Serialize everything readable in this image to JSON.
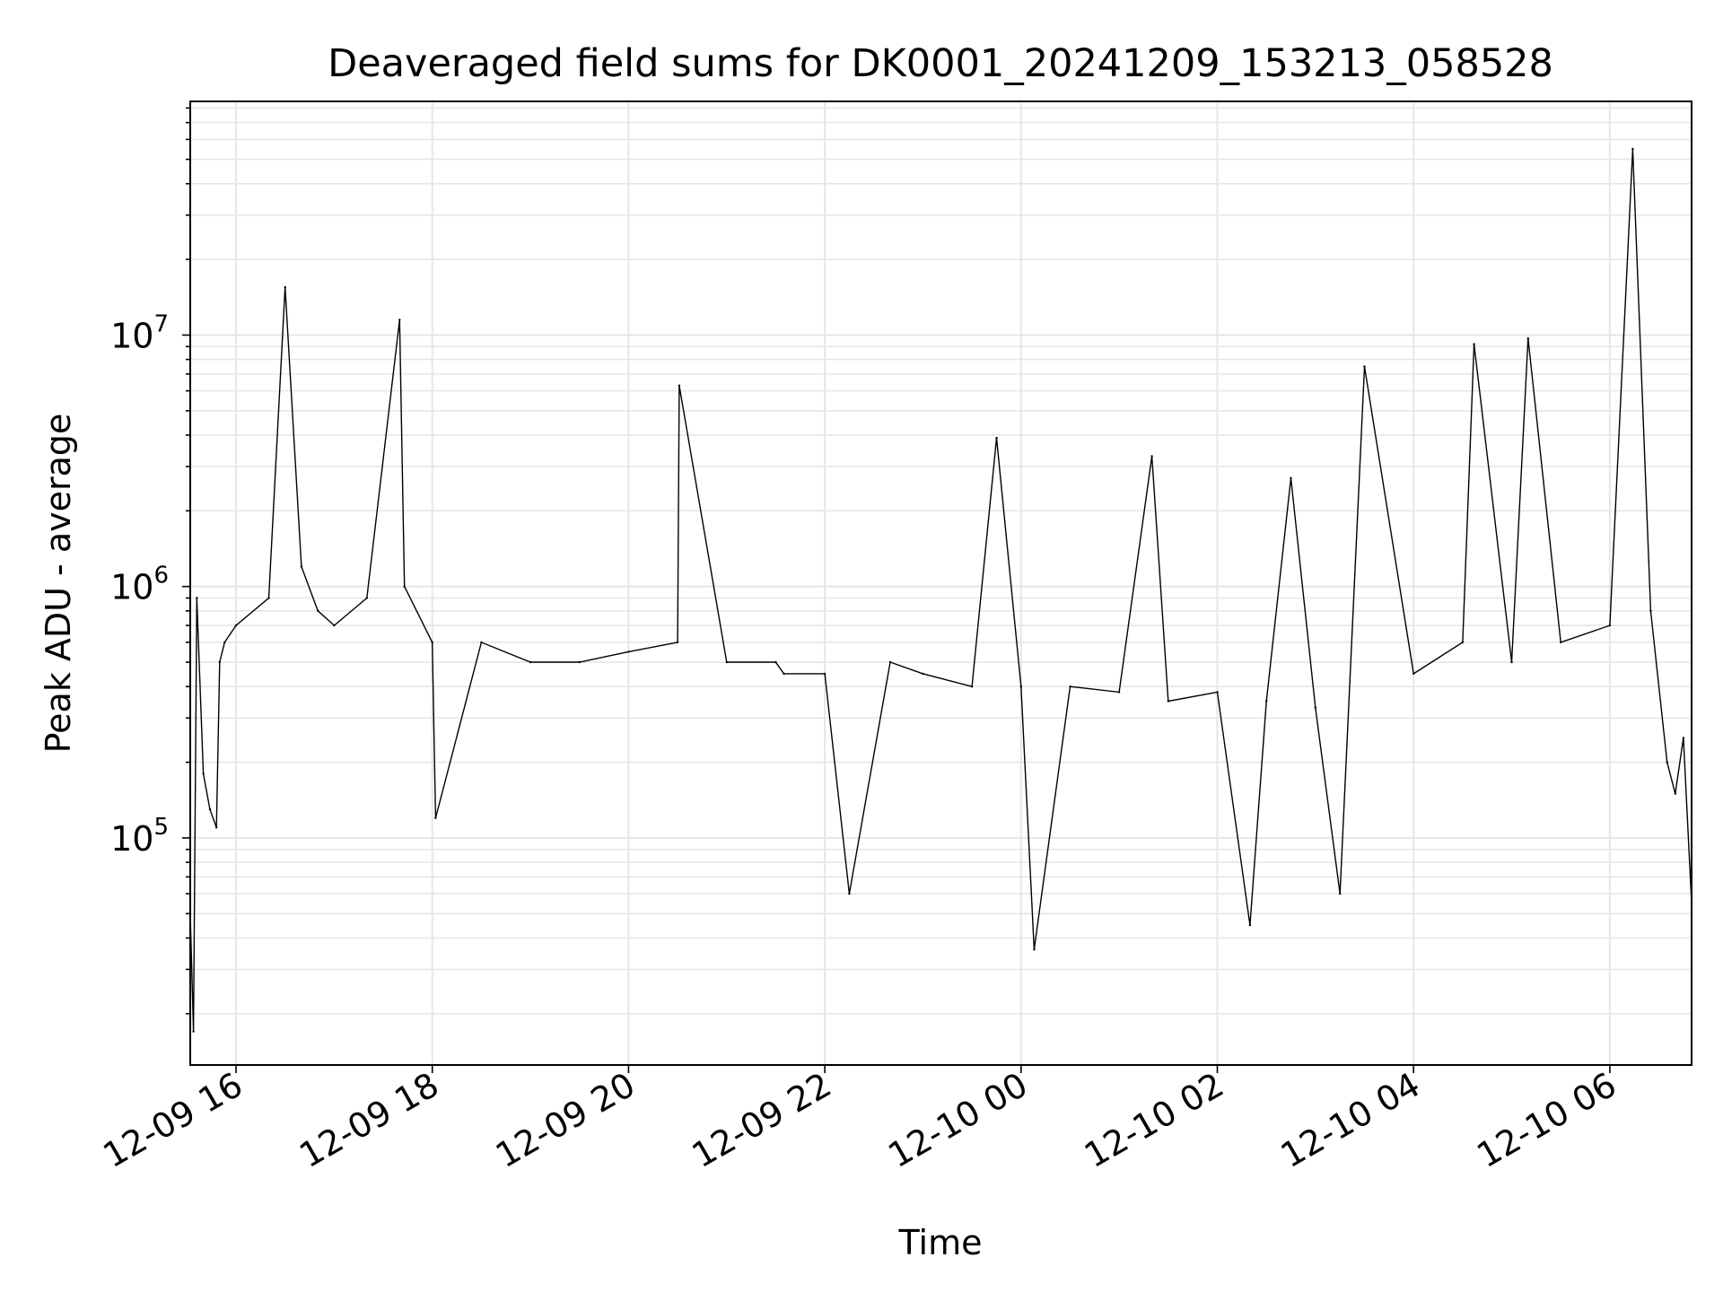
{
  "chart_data": {
    "type": "line",
    "title": "Deaveraged field sums for DK0001_20241209_153213_058528",
    "xlabel": "Time",
    "ylabel": "Peak ADU - average",
    "x_tick_labels": [
      "12-09 16",
      "12-09 18",
      "12-09 20",
      "12-09 22",
      "12-10 00",
      "12-10 02",
      "12-10 04",
      "12-10 06"
    ],
    "y_tick_labels": [
      {
        "base": "10",
        "exp": "5"
      },
      {
        "base": "10",
        "exp": "6"
      },
      {
        "base": "10",
        "exp": "7"
      }
    ],
    "yscale": "log",
    "xlim": [
      "2024-12-09 15:32",
      "2024-12-10 06:50"
    ],
    "ylim": [
      12500,
      85000000
    ],
    "grid": true,
    "grid_color": "#e6e6e6",
    "line_color": "#000000",
    "series": [
      {
        "x": [
          "2024-12-09 15:32",
          "2024-12-09 15:34",
          "2024-12-09 15:36",
          "2024-12-09 15:40",
          "2024-12-09 15:44",
          "2024-12-09 15:48",
          "2024-12-09 15:50",
          "2024-12-09 15:53",
          "2024-12-09 16:00",
          "2024-12-09 16:20",
          "2024-12-09 16:30",
          "2024-12-09 16:40",
          "2024-12-09 16:50",
          "2024-12-09 17:00",
          "2024-12-09 17:20",
          "2024-12-09 17:40",
          "2024-12-09 17:43",
          "2024-12-09 18:00",
          "2024-12-09 18:02",
          "2024-12-09 18:30",
          "2024-12-09 19:00",
          "2024-12-09 19:30",
          "2024-12-09 20:00",
          "2024-12-09 20:30",
          "2024-12-09 20:31",
          "2024-12-09 21:00",
          "2024-12-09 21:30",
          "2024-12-09 21:35",
          "2024-12-09 22:00",
          "2024-12-09 22:15",
          "2024-12-09 22:40",
          "2024-12-09 23:00",
          "2024-12-09 23:30",
          "2024-12-09 23:45",
          "2024-12-10 00:00",
          "2024-12-10 00:08",
          "2024-12-10 00:30",
          "2024-12-10 01:00",
          "2024-12-10 01:20",
          "2024-12-10 01:30",
          "2024-12-10 02:00",
          "2024-12-10 02:20",
          "2024-12-10 02:30",
          "2024-12-10 02:45",
          "2024-12-10 03:00",
          "2024-12-10 03:15",
          "2024-12-10 03:30",
          "2024-12-10 04:00",
          "2024-12-10 04:30",
          "2024-12-10 04:37",
          "2024-12-10 05:00",
          "2024-12-10 05:10",
          "2024-12-10 05:30",
          "2024-12-10 06:00",
          "2024-12-10 06:14",
          "2024-12-10 06:25",
          "2024-12-10 06:35",
          "2024-12-10 06:40",
          "2024-12-10 06:45",
          "2024-12-10 06:50"
        ],
        "values": [
          50000,
          17000,
          900000,
          180000,
          130000,
          110000,
          500000,
          600000,
          700000,
          900000,
          15500000,
          1200000,
          800000,
          700000,
          900000,
          11500000,
          1000000,
          600000,
          120000,
          600000,
          500000,
          500000,
          550000,
          600000,
          6300000,
          500000,
          500000,
          450000,
          450000,
          60000,
          500000,
          450000,
          400000,
          3900000,
          400000,
          36000,
          400000,
          380000,
          3300000,
          350000,
          380000,
          45000,
          350000,
          2700000,
          330000,
          60000,
          7500000,
          450000,
          600000,
          9200000,
          500000,
          9700000,
          600000,
          700000,
          55000000,
          800000,
          200000,
          150000,
          250000,
          55000
        ]
      }
    ]
  }
}
